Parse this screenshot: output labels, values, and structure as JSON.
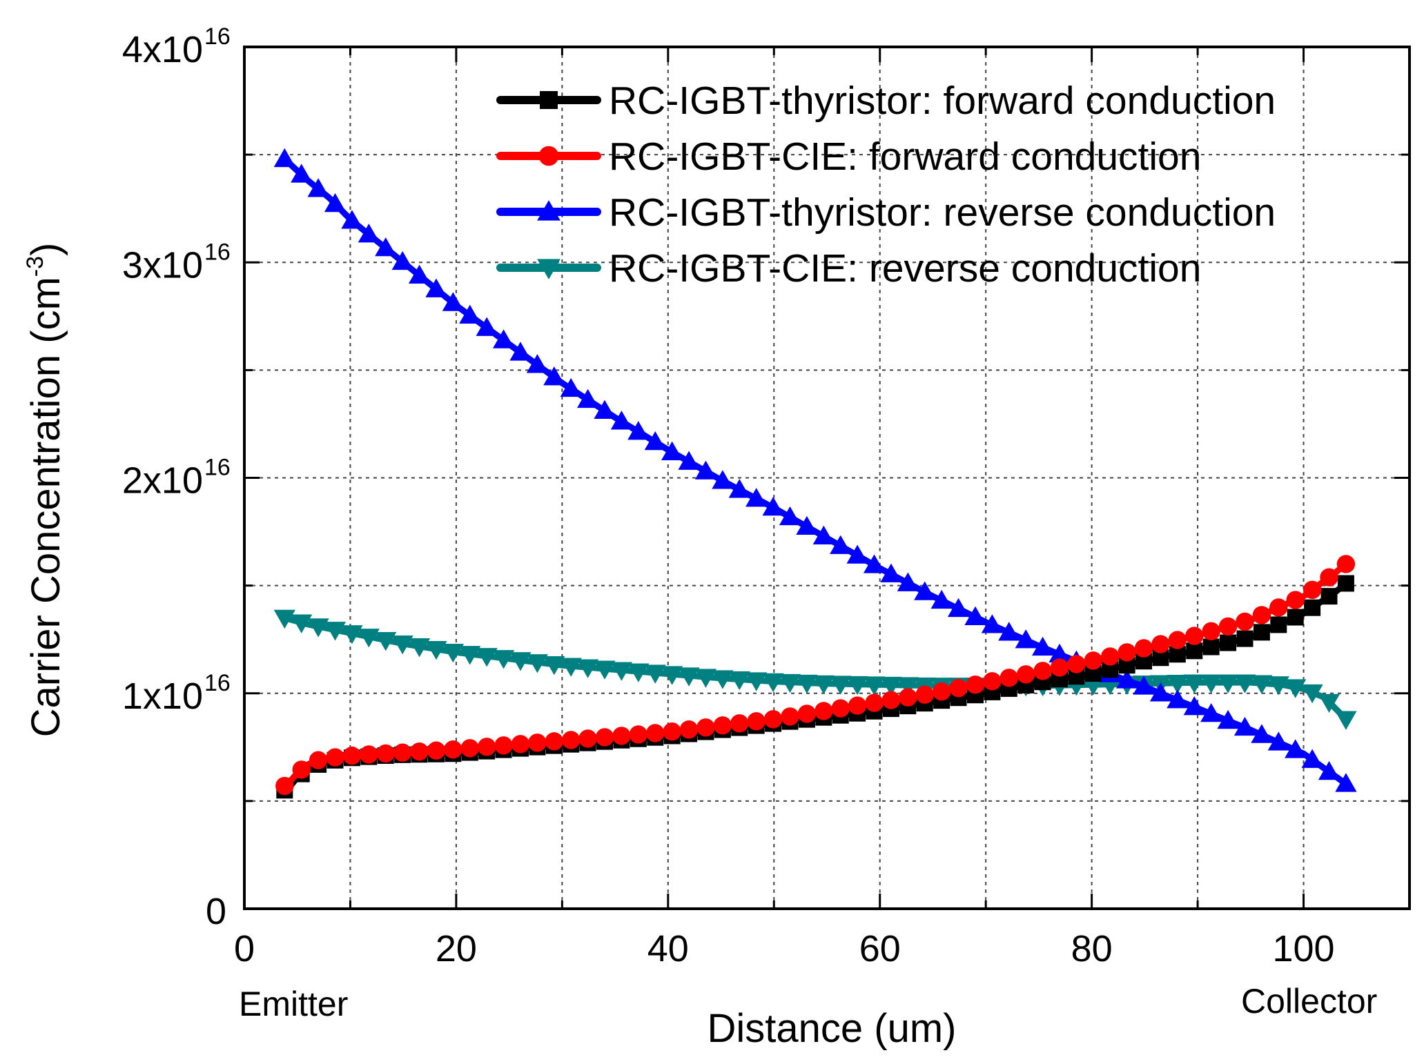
{
  "chart_data": {
    "type": "line",
    "title": "",
    "xlabel": "Distance (um)",
    "ylabel": "Carrier Concentration (cm",
    "ylabel_sup": "-3",
    "ylabel_close": ")",
    "xlim": [
      0,
      110
    ],
    "ylim": [
      0,
      4e+16
    ],
    "grid": true,
    "legend_position": "top-right",
    "x_ticks": [
      {
        "value": 0,
        "label": "0"
      },
      {
        "value": 20,
        "label": "20"
      },
      {
        "value": 40,
        "label": "40"
      },
      {
        "value": 60,
        "label": "60"
      },
      {
        "value": 80,
        "label": "80"
      },
      {
        "value": 100,
        "label": "100"
      }
    ],
    "y_ticks": [
      {
        "value": 0,
        "label": "0",
        "sup": ""
      },
      {
        "value": 1e+16,
        "label": "1x10",
        "sup": "16"
      },
      {
        "value": 2e+16,
        "label": "2x10",
        "sup": "16"
      },
      {
        "value": 3e+16,
        "label": "3x10",
        "sup": "16"
      },
      {
        "value": 4e+16,
        "label": "4x10",
        "sup": "16"
      }
    ],
    "x_grid": [
      10,
      20,
      30,
      40,
      50,
      60,
      70,
      80,
      90,
      100
    ],
    "y_grid": [
      5000000000000000.0,
      1e+16,
      1.5e+16,
      2e+16,
      2.5e+16,
      3e+16,
      3.5e+16
    ],
    "x_end_labels": {
      "left": "Emitter",
      "right": "Collector"
    },
    "series": [
      {
        "name": "RC-IGBT-thyristor: forward conduction",
        "color": "#000000",
        "marker": "square",
        "points": [
          [
            3.8,
            0.55
          ],
          [
            4.2,
            0.56
          ],
          [
            5,
            0.61
          ],
          [
            6,
            0.65
          ],
          [
            7,
            0.67
          ],
          [
            8,
            0.685
          ],
          [
            10,
            0.7
          ],
          [
            13,
            0.71
          ],
          [
            15,
            0.715
          ],
          [
            20,
            0.72
          ],
          [
            25,
            0.74
          ],
          [
            30,
            0.76
          ],
          [
            35,
            0.78
          ],
          [
            40,
            0.8
          ],
          [
            45,
            0.83
          ],
          [
            50,
            0.86
          ],
          [
            55,
            0.89
          ],
          [
            60,
            0.92
          ],
          [
            65,
            0.96
          ],
          [
            70,
            1.0
          ],
          [
            75,
            1.05
          ],
          [
            80,
            1.09
          ],
          [
            85,
            1.15
          ],
          [
            90,
            1.2
          ],
          [
            95,
            1.26
          ],
          [
            100,
            1.37
          ],
          [
            103,
            1.47
          ],
          [
            104,
            1.51
          ]
        ]
      },
      {
        "name": "RC-IGBT-CIE: forward conduction",
        "color": "#ff0000",
        "marker": "circle",
        "points": [
          [
            3.8,
            0.57
          ],
          [
            4.2,
            0.585
          ],
          [
            5,
            0.63
          ],
          [
            6,
            0.67
          ],
          [
            7,
            0.69
          ],
          [
            8,
            0.7
          ],
          [
            10,
            0.71
          ],
          [
            13,
            0.72
          ],
          [
            15,
            0.725
          ],
          [
            20,
            0.74
          ],
          [
            25,
            0.76
          ],
          [
            30,
            0.78
          ],
          [
            35,
            0.8
          ],
          [
            40,
            0.82
          ],
          [
            45,
            0.85
          ],
          [
            50,
            0.88
          ],
          [
            55,
            0.92
          ],
          [
            60,
            0.96
          ],
          [
            65,
            1.0
          ],
          [
            70,
            1.05
          ],
          [
            75,
            1.1
          ],
          [
            80,
            1.15
          ],
          [
            85,
            1.21
          ],
          [
            90,
            1.27
          ],
          [
            95,
            1.34
          ],
          [
            100,
            1.45
          ],
          [
            103,
            1.56
          ],
          [
            104,
            1.6
          ]
        ]
      },
      {
        "name": "RC-IGBT-thyristor: reverse conduction",
        "color": "#0000ff",
        "marker": "triangle-up",
        "points": [
          [
            3.8,
            3.48
          ],
          [
            6,
            3.38
          ],
          [
            8,
            3.3
          ],
          [
            10,
            3.2
          ],
          [
            12,
            3.12
          ],
          [
            15,
            3.0
          ],
          [
            20,
            2.8
          ],
          [
            25,
            2.62
          ],
          [
            30,
            2.44
          ],
          [
            35,
            2.28
          ],
          [
            40,
            2.13
          ],
          [
            45,
            1.99
          ],
          [
            50,
            1.86
          ],
          [
            55,
            1.72
          ],
          [
            60,
            1.58
          ],
          [
            65,
            1.45
          ],
          [
            70,
            1.33
          ],
          [
            75,
            1.22
          ],
          [
            80,
            1.12
          ],
          [
            85,
            1.03
          ],
          [
            90,
            0.93
          ],
          [
            95,
            0.83
          ],
          [
            100,
            0.72
          ],
          [
            104,
            0.58
          ]
        ]
      },
      {
        "name": "RC-IGBT-CIE: reverse conduction",
        "color": "#008080",
        "marker": "triangle-down",
        "points": [
          [
            3.8,
            1.35
          ],
          [
            6,
            1.32
          ],
          [
            10,
            1.28
          ],
          [
            15,
            1.23
          ],
          [
            20,
            1.19
          ],
          [
            25,
            1.16
          ],
          [
            30,
            1.13
          ],
          [
            35,
            1.11
          ],
          [
            40,
            1.09
          ],
          [
            45,
            1.07
          ],
          [
            50,
            1.055
          ],
          [
            55,
            1.045
          ],
          [
            60,
            1.04
          ],
          [
            65,
            1.035
          ],
          [
            70,
            1.035
          ],
          [
            75,
            1.035
          ],
          [
            80,
            1.04
          ],
          [
            85,
            1.045
          ],
          [
            90,
            1.05
          ],
          [
            95,
            1.05
          ],
          [
            98,
            1.04
          ],
          [
            100,
            1.02
          ],
          [
            102,
            0.98
          ],
          [
            104,
            0.88
          ]
        ]
      }
    ]
  }
}
